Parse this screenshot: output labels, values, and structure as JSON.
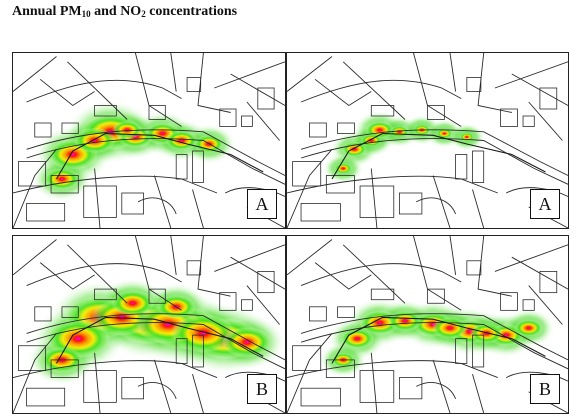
{
  "title": {
    "prefix": "Annual PM",
    "sub1": "10",
    "mid": " and NO",
    "sub2": "2",
    "suffix": " concentrations"
  },
  "panels": [
    {
      "id": "p1",
      "pollutant": "PM10",
      "label": "A",
      "scale": 1.0,
      "plume": [
        [
          0.36,
          0.45,
          1.0
        ],
        [
          0.22,
          0.58,
          0.85
        ],
        [
          0.3,
          0.5,
          0.7
        ],
        [
          0.45,
          0.48,
          0.6
        ],
        [
          0.55,
          0.46,
          0.6
        ],
        [
          0.62,
          0.5,
          0.55
        ],
        [
          0.72,
          0.52,
          0.5
        ],
        [
          0.18,
          0.72,
          0.6
        ],
        [
          0.42,
          0.44,
          0.5
        ]
      ]
    },
    {
      "id": "p2",
      "pollutant": "NO2",
      "label": "A",
      "scale": 0.6,
      "plume": [
        [
          0.33,
          0.44,
          0.8
        ],
        [
          0.24,
          0.55,
          0.7
        ],
        [
          0.3,
          0.5,
          0.6
        ],
        [
          0.4,
          0.45,
          0.55
        ],
        [
          0.48,
          0.44,
          0.5
        ],
        [
          0.56,
          0.46,
          0.45
        ],
        [
          0.64,
          0.48,
          0.4
        ],
        [
          0.2,
          0.66,
          0.5
        ]
      ]
    },
    {
      "id": "p3",
      "pollutant": "PM10",
      "label": "B",
      "scale": 1.2,
      "plume": [
        [
          0.32,
          0.46,
          1.0
        ],
        [
          0.5,
          0.49,
          1.0
        ],
        [
          0.63,
          0.52,
          1.0
        ],
        [
          0.78,
          0.58,
          0.95
        ],
        [
          0.24,
          0.58,
          0.9
        ],
        [
          0.4,
          0.46,
          0.85
        ],
        [
          0.57,
          0.5,
          0.9
        ],
        [
          0.7,
          0.55,
          0.9
        ],
        [
          0.18,
          0.7,
          0.6
        ],
        [
          0.86,
          0.6,
          0.7
        ],
        [
          0.44,
          0.38,
          0.6
        ],
        [
          0.6,
          0.4,
          0.55
        ]
      ]
    },
    {
      "id": "p4",
      "pollutant": "NO2",
      "label": "B",
      "scale": 0.8,
      "plume": [
        [
          0.33,
          0.49,
          0.85
        ],
        [
          0.52,
          0.5,
          0.85
        ],
        [
          0.65,
          0.54,
          0.85
        ],
        [
          0.78,
          0.56,
          0.75
        ],
        [
          0.25,
          0.58,
          0.7
        ],
        [
          0.42,
          0.48,
          0.7
        ],
        [
          0.58,
          0.52,
          0.75
        ],
        [
          0.71,
          0.55,
          0.7
        ],
        [
          0.2,
          0.7,
          0.5
        ],
        [
          0.86,
          0.52,
          0.6
        ]
      ]
    }
  ]
}
